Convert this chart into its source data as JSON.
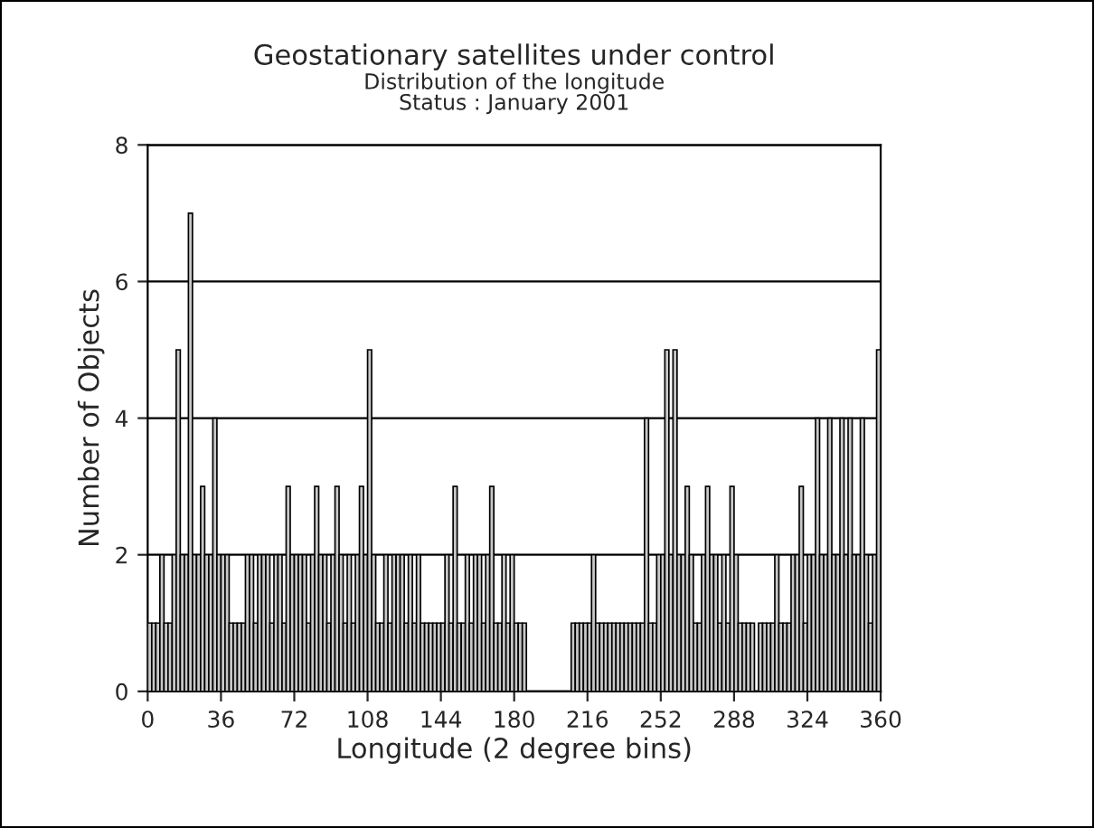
{
  "chart_data": {
    "type": "histogram",
    "title": "Geostationary satellites under control",
    "subtitle": "Distribution of the longitude\nStatus : January 2001",
    "xlabel": "Longitude (2 degree bins)",
    "ylabel": "Number of Objects",
    "bins": [
      0,
      2,
      4,
      6,
      8,
      10,
      12,
      14,
      16,
      18,
      20,
      22,
      24,
      26,
      28,
      30,
      32,
      34,
      36,
      38,
      40,
      42,
      44,
      46,
      48,
      50,
      52,
      54,
      56,
      58,
      60,
      62,
      64,
      66,
      68,
      70,
      72,
      74,
      76,
      78,
      80,
      82,
      84,
      86,
      88,
      90,
      92,
      94,
      96,
      98,
      100,
      102,
      104,
      106,
      108,
      110,
      112,
      114,
      116,
      118,
      120,
      122,
      124,
      126,
      128,
      130,
      132,
      134,
      136,
      138,
      140,
      142,
      144,
      146,
      148,
      150,
      152,
      154,
      156,
      158,
      160,
      162,
      164,
      166,
      168,
      170,
      172,
      174,
      176,
      178,
      180,
      182,
      184,
      186,
      188,
      190,
      192,
      194,
      196,
      198,
      200,
      202,
      204,
      206,
      208,
      210,
      212,
      214,
      216,
      218,
      220,
      222,
      224,
      226,
      228,
      230,
      232,
      234,
      236,
      238,
      240,
      242,
      244,
      246,
      248,
      250,
      252,
      254,
      256,
      258,
      260,
      262,
      264,
      266,
      268,
      270,
      272,
      274,
      276,
      278,
      280,
      282,
      284,
      286,
      288,
      290,
      292,
      294,
      296,
      298,
      300,
      302,
      304,
      306,
      308,
      310,
      312,
      314,
      316,
      318,
      320,
      322,
      324,
      326,
      328,
      330,
      332,
      334,
      336,
      338,
      340,
      342,
      344,
      346,
      348,
      350,
      352,
      354,
      356,
      358,
      360
    ],
    "values": [
      1,
      1,
      1,
      2,
      1,
      1,
      2,
      5,
      2,
      2,
      7,
      2,
      2,
      3,
      2,
      2,
      4,
      2,
      2,
      2,
      1,
      1,
      1,
      1,
      2,
      2,
      1,
      2,
      2,
      2,
      1,
      2,
      2,
      1,
      3,
      2,
      2,
      2,
      2,
      1,
      2,
      3,
      2,
      2,
      1,
      2,
      3,
      2,
      1,
      2,
      1,
      2,
      3,
      2,
      5,
      2,
      1,
      1,
      2,
      1,
      2,
      2,
      2,
      1,
      2,
      1,
      2,
      1,
      1,
      1,
      1,
      1,
      1,
      2,
      1,
      3,
      1,
      1,
      2,
      1,
      2,
      2,
      1,
      2,
      3,
      1,
      1,
      2,
      1,
      2,
      1,
      1,
      1,
      0,
      0,
      0,
      0,
      0,
      0,
      0,
      0,
      0,
      0,
      0,
      1,
      1,
      1,
      1,
      1,
      2,
      1,
      1,
      1,
      1,
      1,
      1,
      1,
      1,
      1,
      1,
      1,
      1,
      4,
      1,
      1,
      2,
      2,
      5,
      2,
      5,
      2,
      2,
      3,
      2,
      1,
      1,
      2,
      3,
      2,
      2,
      1,
      2,
      1,
      3,
      2,
      1,
      1,
      1,
      1,
      0,
      1,
      1,
      1,
      1,
      2,
      1,
      1,
      1,
      2,
      2,
      3,
      1,
      2,
      2,
      4,
      2,
      2,
      4,
      2,
      2,
      4,
      2,
      4,
      2,
      2,
      4,
      2,
      1,
      2,
      5
    ],
    "color": "#c8c8c8",
    "xlim": [
      0,
      360
    ],
    "ylim": [
      0,
      8
    ],
    "xticks": [
      0,
      36,
      72,
      108,
      144,
      180,
      216,
      252,
      288,
      324,
      360
    ],
    "yticks": [
      0,
      2,
      4,
      6,
      8
    ],
    "grid": "y"
  }
}
